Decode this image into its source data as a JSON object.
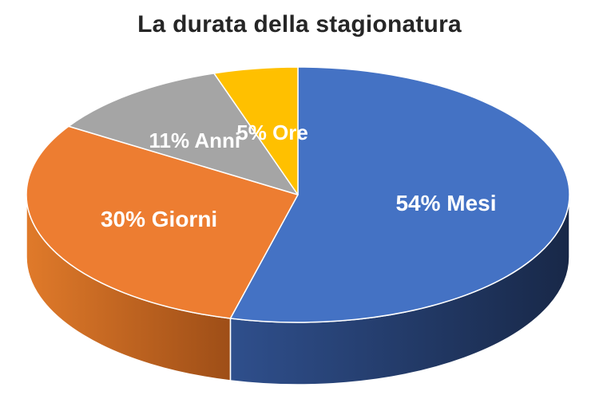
{
  "chart_data": {
    "type": "pie",
    "title": "La durata della stagionatura",
    "slices": [
      {
        "label": "54% Mesi",
        "name": "Mesi",
        "value": 54,
        "color": "#4472C4"
      },
      {
        "label": "30% Giorni",
        "name": "Giorni",
        "value": 30,
        "color": "#ED7D31"
      },
      {
        "label": "11% Anni",
        "name": "Anni",
        "value": 11,
        "color": "#A5A5A5"
      },
      {
        "label": "5% Ore",
        "name": "Ore",
        "value": 5,
        "color": "#FFC000"
      }
    ],
    "style": "3d",
    "legend": "none"
  }
}
